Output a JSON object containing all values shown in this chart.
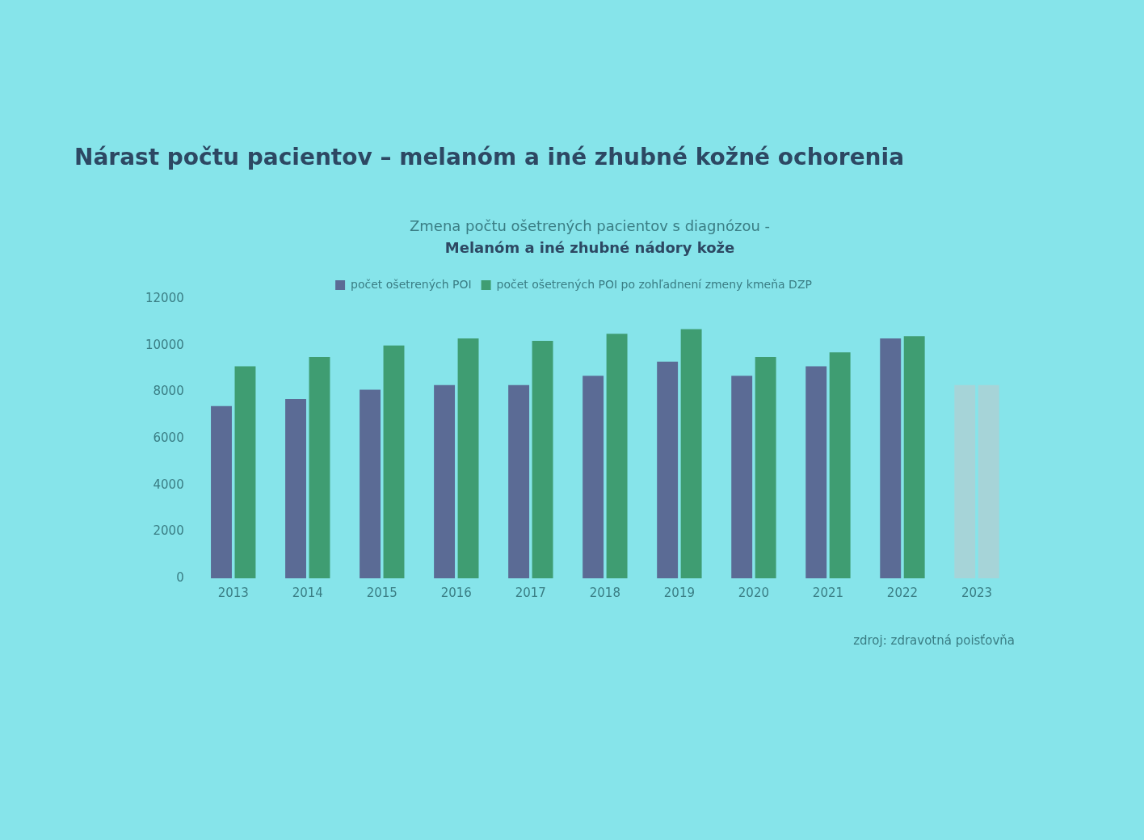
{
  "chart_data": {
    "type": "bar",
    "title": "Nárast počtu pacientov – melanóm a iné zhubné kožné ochorenia",
    "subtitle": "Zmena počtu ošetrených pacientov s diagnózou -\nMelanóm a iné zhubné nádory kože",
    "annotations": [
      "zdroj: zdravotná poisťovňa"
    ],
    "categories": [
      "2013",
      "2014",
      "2015",
      "2016",
      "2017",
      "2018",
      "2019",
      "2020",
      "2021",
      "2022",
      "2023"
    ],
    "series": [
      {
        "name": "počet ošetrených POI",
        "color": "#5b6b95",
        "colors": [
          "#5b6b95",
          "#5b6b95",
          "#5b6b95",
          "#5b6b95",
          "#5b6b95",
          "#5b6b95",
          "#5b6b95",
          "#5b6b95",
          "#5b6b95",
          "#5b6b95",
          "#a6d4d8"
        ],
        "values": [
          7400,
          7700,
          8100,
          8300,
          8300,
          8700,
          9300,
          8700,
          9100,
          10300,
          8300
        ]
      },
      {
        "name": "počet ošetrených POI po zohľadnení zmeny kmeňa DZP",
        "color": "#3f9d72",
        "colors": [
          "#3f9d72",
          "#3f9d72",
          "#3f9d72",
          "#3f9d72",
          "#3f9d72",
          "#3f9d72",
          "#3f9d72",
          "#3f9d72",
          "#3f9d72",
          "#3f9d72",
          "#a6d4d8"
        ],
        "values": [
          9100,
          9500,
          10000,
          10300,
          10200,
          10500,
          10700,
          9500,
          9700,
          10400,
          8300
        ]
      }
    ],
    "ylim": [
      0,
      12000
    ],
    "yticks": [
      0,
      2000,
      4000,
      6000,
      8000,
      10000,
      12000
    ],
    "grid": false,
    "legend": "top"
  }
}
